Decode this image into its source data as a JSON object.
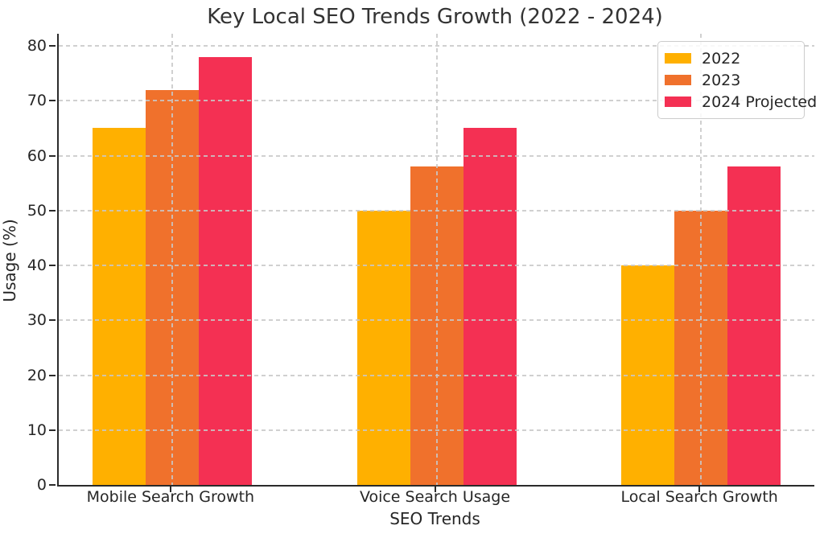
{
  "chart_data": {
    "type": "bar",
    "title": "Key Local SEO Trends Growth (2022 - 2024)",
    "xlabel": "SEO Trends",
    "ylabel": "Usage (%)",
    "categories": [
      "Mobile Search Growth",
      "Voice Search Usage",
      "Local Search Growth"
    ],
    "series": [
      {
        "name": "2022",
        "color": "#FFB000",
        "values": [
          65,
          50,
          40
        ]
      },
      {
        "name": "2023",
        "color": "#F0712C",
        "values": [
          72,
          58,
          50
        ]
      },
      {
        "name": "2024 Projected",
        "color": "#F43053",
        "values": [
          78,
          65,
          58
        ]
      }
    ],
    "yticks": [
      0,
      10,
      20,
      30,
      40,
      50,
      60,
      70,
      80
    ],
    "ylim": [
      0,
      82.2
    ],
    "grid": "dashed",
    "grid_color": "#c8c8c8",
    "legend_position": "upper right",
    "legend_labels": [
      "2022",
      "2023",
      "2024 Projected"
    ]
  }
}
